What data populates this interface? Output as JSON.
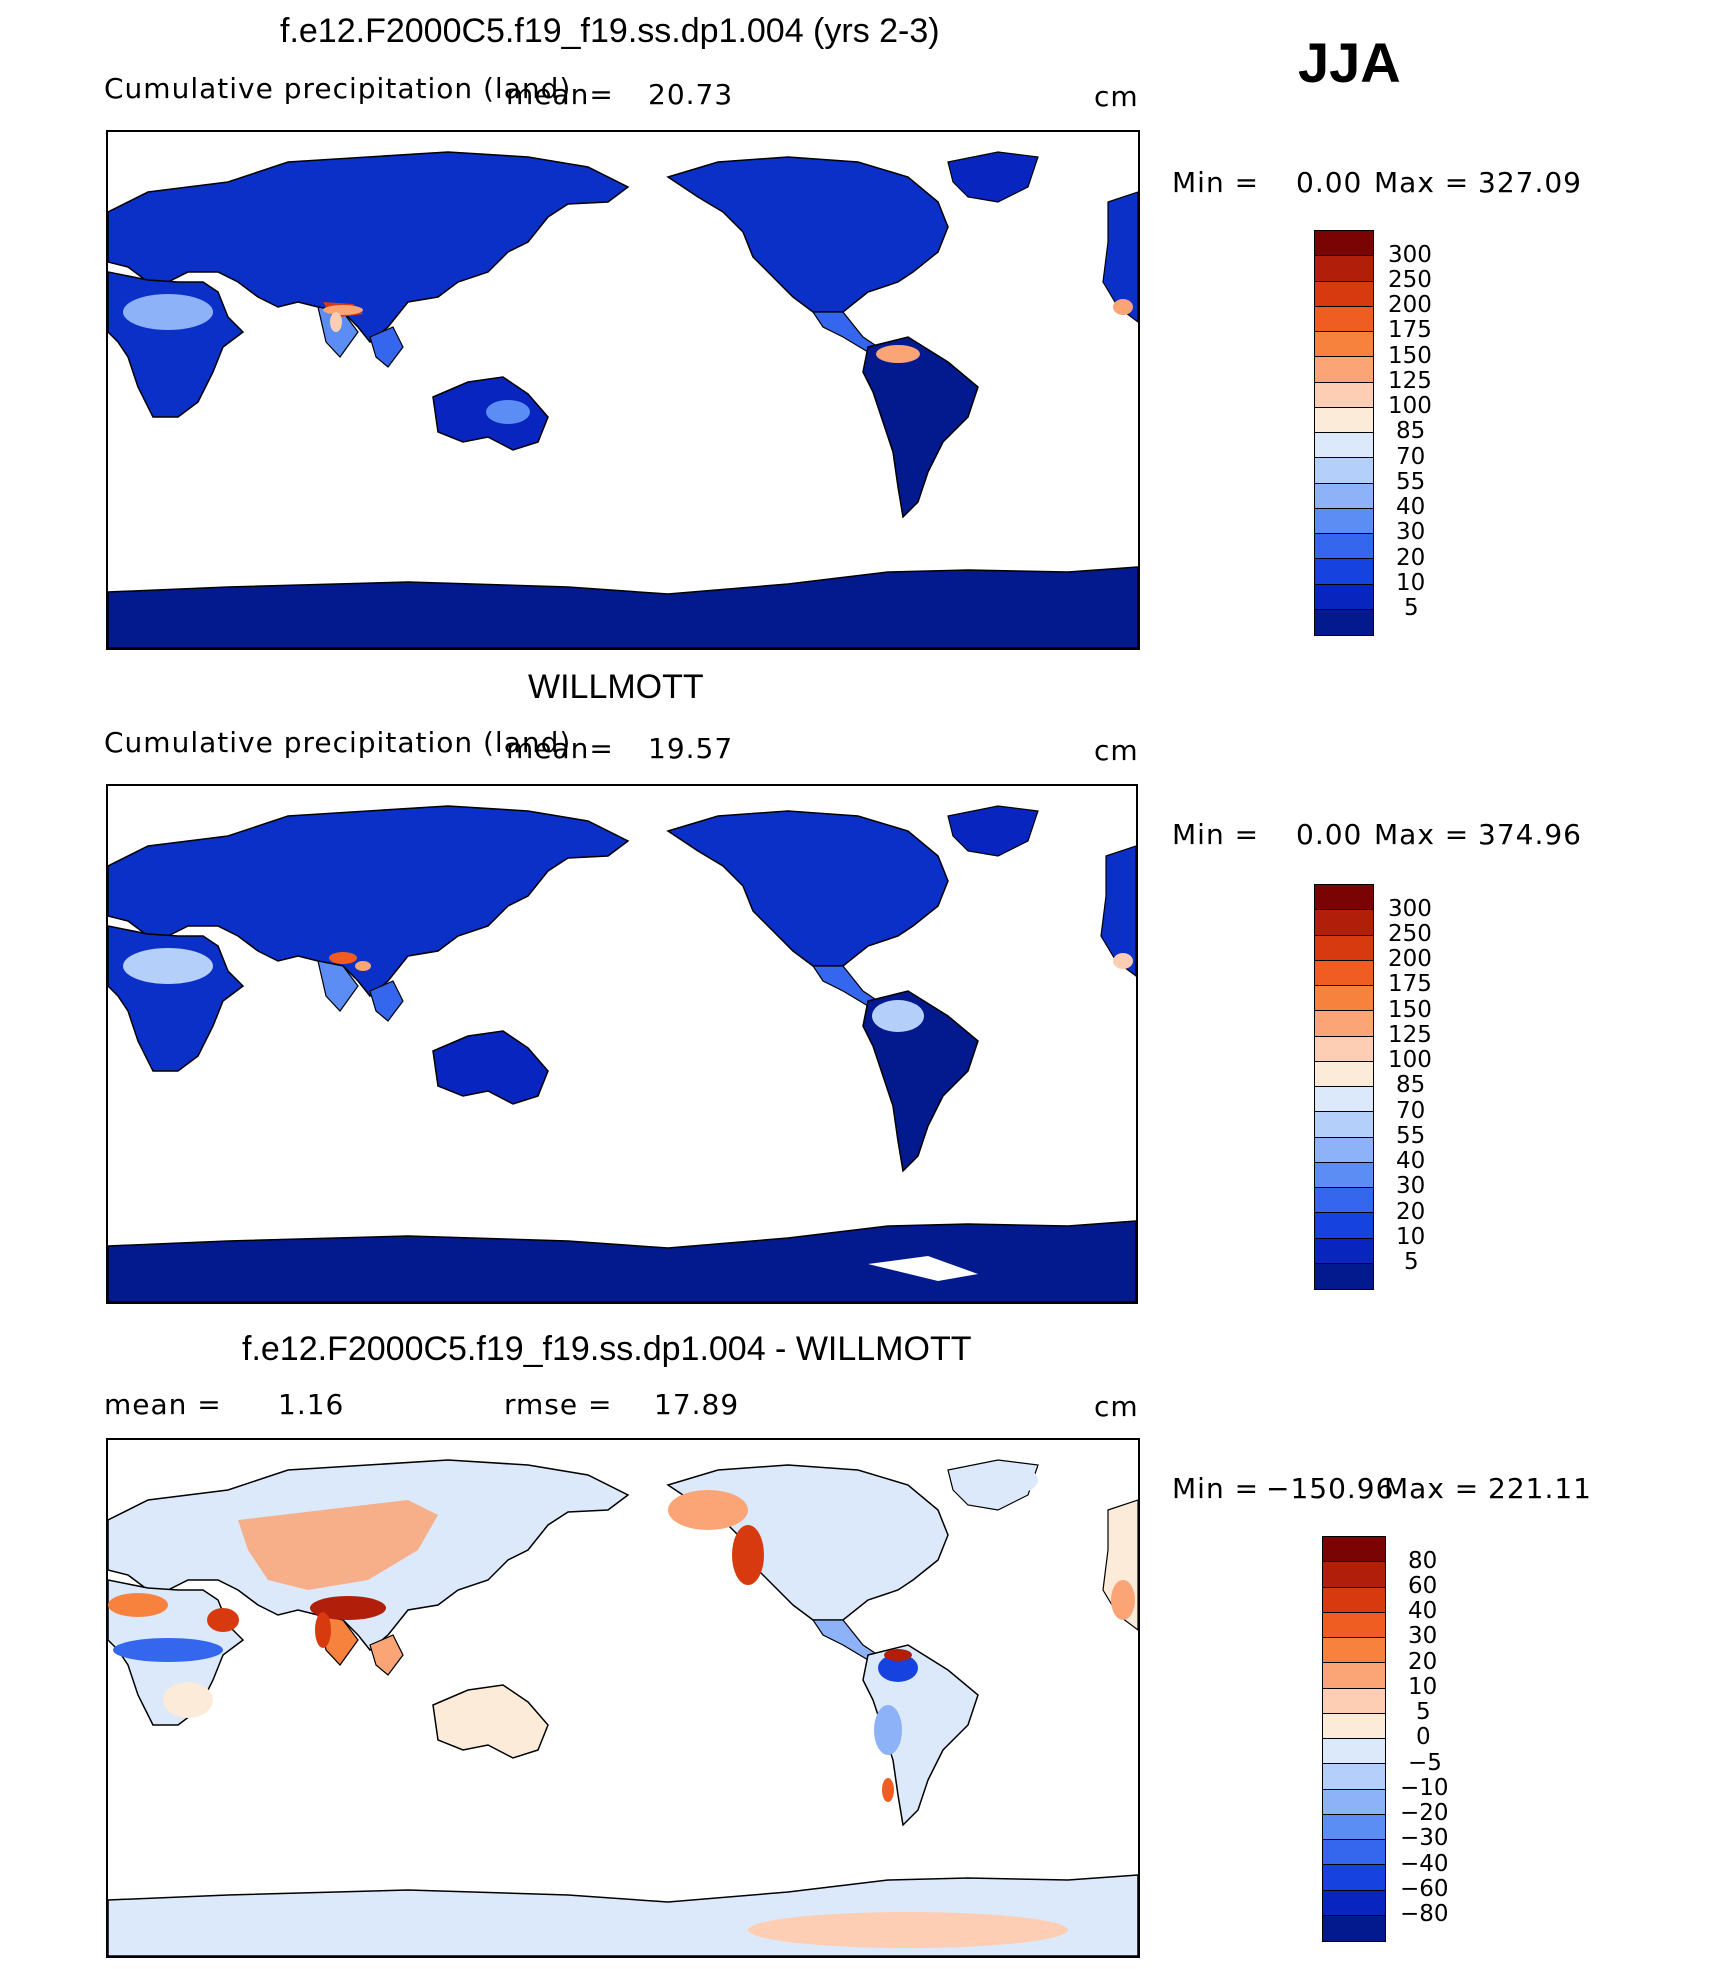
{
  "season": "JJA",
  "panels": [
    {
      "title": "f.e12.F2000C5.f19_f19.ss.dp1.004 (yrs 2-3)",
      "variable": "Cumulative precipitation (land)",
      "mean_label": "mean=",
      "mean_value": "20.73",
      "units": "cm",
      "min_label": "Min =",
      "min_value": "0.00",
      "max_label": "Max =",
      "max_value": "327.09",
      "levels": [
        "300",
        "250",
        "200",
        "175",
        "150",
        "125",
        "100",
        "85",
        "70",
        "55",
        "40",
        "30",
        "20",
        "10",
        "5"
      ]
    },
    {
      "title": "WILLMOTT",
      "variable": "Cumulative precipitation (land)",
      "mean_label": "mean=",
      "mean_value": "19.57",
      "units": "cm",
      "min_label": "Min =",
      "min_value": "0.00",
      "max_label": "Max =",
      "max_value": "374.96",
      "levels": [
        "300",
        "250",
        "200",
        "175",
        "150",
        "125",
        "100",
        "85",
        "70",
        "55",
        "40",
        "30",
        "20",
        "10",
        "5"
      ]
    },
    {
      "title": "f.e12.F2000C5.f19_f19.ss.dp1.004 - WILLMOTT",
      "mean_label": "mean =",
      "mean_value": "1.16",
      "rmse_label": "rmse =",
      "rmse_value": "17.89",
      "units": "cm",
      "min_label": "Min =",
      "min_value": "−150.96",
      "max_label": "Max =",
      "max_value": "221.11",
      "levels": [
        "80",
        "60",
        "40",
        "30",
        "20",
        "10",
        "5",
        "0",
        "−5",
        "−10",
        "−20",
        "−30",
        "−40",
        "−60",
        "−80"
      ]
    }
  ],
  "colors": {
    "abs_scale": [
      "#7a0403",
      "#b11f0b",
      "#d83a0f",
      "#f05d22",
      "#f7823e",
      "#fba475",
      "#fdcdb4",
      "#fcebd9",
      "#dbe9fb",
      "#b4cffa",
      "#8db2f8",
      "#5c8df5",
      "#3566ee",
      "#1643e0",
      "#0826bf",
      "#021a8d"
    ],
    "diff_scale": [
      "#7a0403",
      "#b11f0b",
      "#d83a0f",
      "#f05d22",
      "#f7823e",
      "#fba475",
      "#fdcdb4",
      "#fcebd9",
      "#dbe9fb",
      "#b4cffa",
      "#8db2f8",
      "#5c8df5",
      "#3566ee",
      "#1643e0",
      "#0826bf",
      "#021a8d"
    ]
  }
}
